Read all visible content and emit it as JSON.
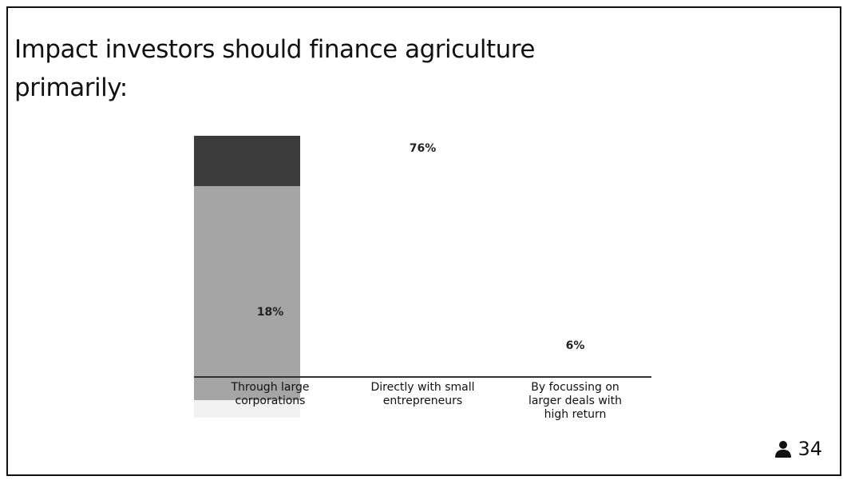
{
  "chart_data": {
    "type": "bar",
    "title": "Impact investors should finance agriculture primarily:",
    "categories": [
      "Through large corporations",
      "Directly with small entrepreneurs",
      "By focussing on larger deals with high return"
    ],
    "values": [
      18,
      76,
      6
    ],
    "value_labels": [
      "18%",
      "76%",
      "6%"
    ],
    "colors": [
      "#3b3b3b",
      "#a5a5a5",
      "#f1f1f1"
    ]
  },
  "participants": 34
}
